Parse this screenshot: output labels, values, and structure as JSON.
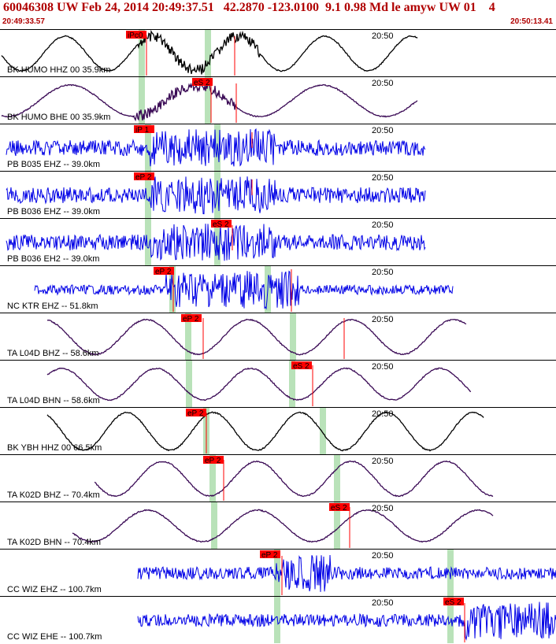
{
  "header": {
    "title": "60046308 UW Feb 24, 2014 20:49:37.51   42.2870 -123.0100  9.1 0.98 Md le amyw UW 01    4",
    "time_start": "20:49:33.57",
    "time_end": "20:50:13.41"
  },
  "time_tick": "20:50",
  "colors": {
    "blue": "#0000e6",
    "black": "#000000",
    "purple": "#3a0a55",
    "green": "#b9e2b9",
    "red": "#ff0000"
  },
  "traces": [
    {
      "label": "BK HUMO HHZ 00 35.9km",
      "color": "black",
      "style": "wave",
      "picks": [
        {
          "text": "iPc0"
        }
      ]
    },
    {
      "label": "BK HUMO BHE 00 35.9km",
      "color": "purple",
      "style": "wave",
      "picks": [
        {
          "text": "eS 2"
        }
      ]
    },
    {
      "label": "PB B035 EHZ -- 39.0km",
      "color": "blue",
      "style": "noise",
      "picks": [
        {
          "text": "iP 1"
        }
      ]
    },
    {
      "label": "PB B036 EHZ -- 39.0km",
      "color": "blue",
      "style": "noise",
      "picks": [
        {
          "text": "eP 2"
        }
      ]
    },
    {
      "label": "PB B036 EH2 -- 39.0km",
      "color": "blue",
      "style": "noise",
      "picks": [
        {
          "text": "eS 2"
        }
      ]
    },
    {
      "label": "NC KTR EHZ -- 51.8km",
      "color": "blue",
      "style": "noise",
      "picks": [
        {
          "text": "eP 2"
        }
      ]
    },
    {
      "label": "TA L04D BHZ -- 58.6km",
      "color": "purple",
      "style": "wave",
      "picks": [
        {
          "text": "eP 2"
        }
      ]
    },
    {
      "label": "TA L04D BHN -- 58.6km",
      "color": "purple",
      "style": "wave",
      "picks": [
        {
          "text": "eS 2"
        }
      ]
    },
    {
      "label": "BK YBH HHZ 00 66.5km",
      "color": "black",
      "style": "wave",
      "picks": [
        {
          "text": "eP 2"
        }
      ]
    },
    {
      "label": "TA K02D BHZ -- 70.4km",
      "color": "purple",
      "style": "wave",
      "picks": [
        {
          "text": "eP 2"
        }
      ]
    },
    {
      "label": "TA K02D BHN -- 70.4km",
      "color": "purple",
      "style": "wave",
      "picks": [
        {
          "text": "eS 2"
        }
      ]
    },
    {
      "label": "CC WIZ EHZ -- 100.7km",
      "color": "blue",
      "style": "noise",
      "picks": [
        {
          "text": "eP 2"
        }
      ]
    },
    {
      "label": "CC WIZ EHE -- 100.7km",
      "color": "blue",
      "style": "noise",
      "picks": [
        {
          "text": "eS 2"
        }
      ]
    }
  ]
}
